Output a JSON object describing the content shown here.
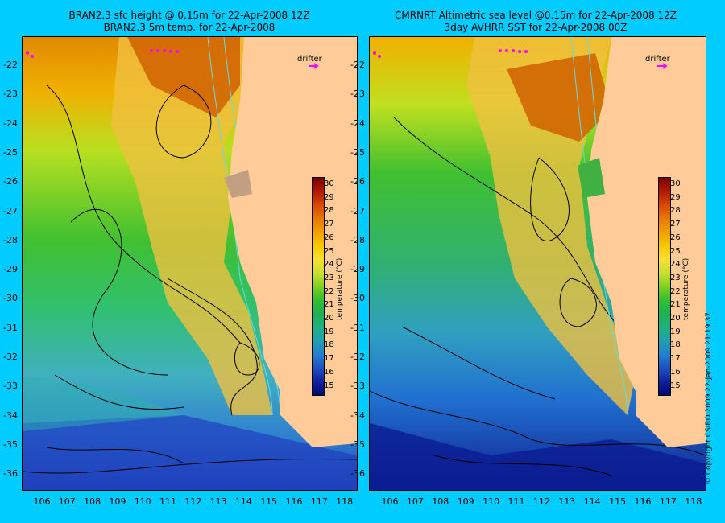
{
  "titles": {
    "left_line1": "BRAN2.3 sfc height @ 0.15m for 22-Apr-2008 12Z",
    "left_line2": "BRAN2.3 5m temp. for 22-Apr-2008",
    "right_line1": "CMRNRT Altimetric sea level  @0.15m  for 22-Apr-2008 12Z",
    "right_line2": "3day AVHRR SST for 22-Apr-2008 00Z"
  },
  "axes": {
    "latitudes": [
      "-22",
      "-23",
      "-24",
      "-25",
      "-26",
      "-27",
      "-28",
      "-29",
      "-30",
      "-31",
      "-32",
      "-33",
      "-34",
      "-35",
      "-36"
    ],
    "longitudes": [
      "106",
      "107",
      "108",
      "109",
      "110",
      "111",
      "112",
      "113",
      "114",
      "115",
      "116",
      "117",
      "118"
    ]
  },
  "colorbar": {
    "ticks": [
      "30",
      "29",
      "28",
      "27",
      "26",
      "25",
      "24",
      "23",
      "22",
      "21",
      "20",
      "19",
      "18",
      "17",
      "16",
      "15"
    ],
    "label": "temperature (°C)",
    "colors": [
      "#7a0000",
      "#b01a00",
      "#d84800",
      "#e87800",
      "#f0a000",
      "#f8c800",
      "#f8e030",
      "#c8e030",
      "#80d020",
      "#30c030",
      "#20b050",
      "#20b080",
      "#20a0b0",
      "#2080d0",
      "#2050c0",
      "#1020a0",
      "#000870"
    ]
  },
  "drifter": {
    "label": "drifter"
  },
  "copyright": "© Copyright CSIRO 2009   22-Jan-2009 21:19:37",
  "colors": {
    "background": "#00ccff",
    "land": "#ffcc99",
    "drifter": "#ff00ff",
    "contour": "#000000",
    "bathymetry": "#66dddd"
  }
}
